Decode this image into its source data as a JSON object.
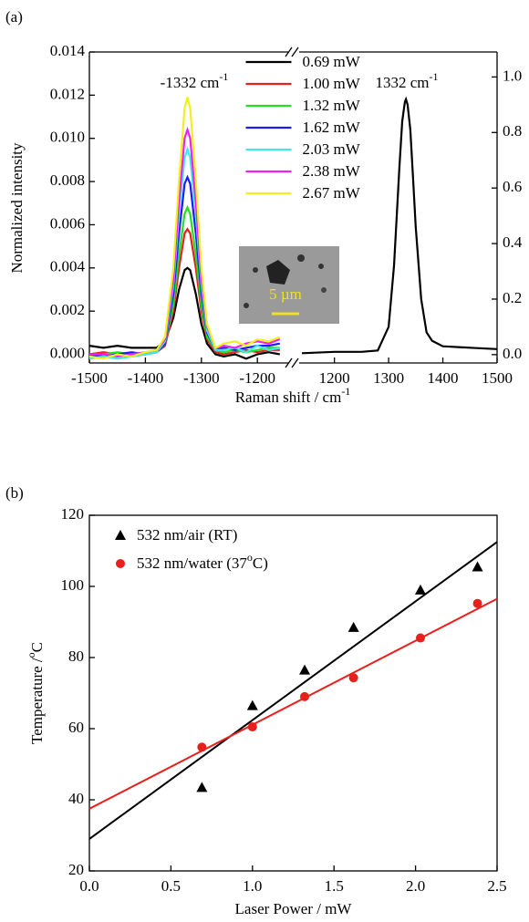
{
  "chart_data": [
    {
      "type": "broken-line",
      "panel_label": "(a)",
      "x_label": {
        "text": "Raman shift / cm",
        "sup": "-1"
      },
      "y_label": "Normalized intensity",
      "legend": "upper center",
      "ylim": [
        -0.0004,
        0.014
      ],
      "yticks": [
        {
          "value": 0,
          "label": "0.000"
        },
        {
          "value": 0.002,
          "label": "0.002"
        },
        {
          "value": 0.004,
          "label": "0.004"
        },
        {
          "value": 0.006,
          "label": "0.006"
        },
        {
          "value": 0.008,
          "label": "0.008"
        },
        {
          "value": 0.01,
          "label": "0.010"
        },
        {
          "value": 0.012,
          "label": "0.012"
        },
        {
          "value": 0.014,
          "label": "0.014"
        }
      ],
      "y2lim": [
        -0.03,
        1.09
      ],
      "y2ticks": [
        {
          "value": 0,
          "label": "0.0"
        },
        {
          "value": 0.2,
          "label": "0.2"
        },
        {
          "value": 0.4,
          "label": "0.4"
        },
        {
          "value": 0.6,
          "label": "0.6"
        },
        {
          "value": 0.8,
          "label": "0.8"
        },
        {
          "value": 1,
          "label": "1.0"
        }
      ],
      "annotations": [
        {
          "text": "-1332 cm",
          "sup": "-1"
        },
        {
          "text": "1332 cm",
          "sup": "-1"
        }
      ],
      "inset_scale_label": "5 µm",
      "left": {
        "xlim": [
          -1500,
          -1145
        ],
        "xticks": [
          -1500,
          -1400,
          -1300,
          -1200
        ],
        "x": [
          -1500,
          -1475,
          -1450,
          -1425,
          -1400,
          -1380,
          -1365,
          -1350,
          -1340,
          -1330,
          -1325,
          -1320,
          -1310,
          -1300,
          -1290,
          -1275,
          -1260,
          -1240,
          -1220,
          -1200,
          -1180,
          -1160
        ],
        "series": [
          {
            "name": "0.69 mW",
            "color": "#000000",
            "values": [
              0.0004,
              0.0003,
              0.0004,
              0.0003,
              0.0003,
              0.0003,
              0.0006,
              0.0017,
              0.003,
              0.0039,
              0.004,
              0.0039,
              0.0028,
              0.0014,
              0.0005,
              0.0,
              -0.0001,
              0.0,
              -0.0002,
              0.0,
              0.0001,
              0.0
            ]
          },
          {
            "name": "1.00 mW",
            "color": "#e8201c",
            "values": [
              0.0,
              0.0001,
              0.0,
              -0.0001,
              0.0,
              0.0001,
              0.0004,
              0.002,
              0.004,
              0.0056,
              0.0058,
              0.0056,
              0.004,
              0.002,
              0.0007,
              0.0001,
              0.0,
              0.0001,
              0.0002,
              0.0001,
              0.0002,
              0.0002
            ]
          },
          {
            "name": "1.32 mW",
            "color": "#22e022",
            "values": [
              -0.0001,
              0.0,
              0.0001,
              0.0,
              0.0,
              0.0001,
              0.0005,
              0.0023,
              0.0046,
              0.0065,
              0.0068,
              0.0065,
              0.0046,
              0.0023,
              0.0008,
              0.0002,
              0.0001,
              0.0002,
              0.0001,
              0.0002,
              0.0003,
              0.0003
            ]
          },
          {
            "name": "1.62 mW",
            "color": "#1c1cf0",
            "values": [
              0.0,
              -0.0001,
              0.0,
              0.0001,
              0.0,
              0.0001,
              0.0005,
              0.0028,
              0.0056,
              0.0079,
              0.0082,
              0.0079,
              0.0056,
              0.0028,
              0.001,
              0.0002,
              0.0003,
              0.0002,
              0.0003,
              0.0004,
              0.0004,
              0.0005
            ]
          },
          {
            "name": "2.03 mW",
            "color": "#40e8e8",
            "values": [
              -0.0002,
              -0.0001,
              -0.0002,
              -0.0001,
              0.0,
              0.0001,
              0.0006,
              0.0032,
              0.0065,
              0.0091,
              0.0095,
              0.0091,
              0.0065,
              0.0032,
              0.0011,
              0.0002,
              0.0002,
              0.0003,
              0.0001,
              0.0004,
              0.0002,
              0.0003
            ]
          },
          {
            "name": "2.38 mW",
            "color": "#f020f0",
            "values": [
              0.0,
              0.0,
              -0.0001,
              0.0,
              0.0001,
              0.0002,
              0.0007,
              0.0035,
              0.0071,
              0.01,
              0.0104,
              0.01,
              0.0071,
              0.0035,
              0.0013,
              0.0003,
              0.0004,
              0.0003,
              0.0005,
              0.0006,
              0.0005,
              0.0007
            ]
          },
          {
            "name": "2.67 mW",
            "color": "#f0f020",
            "values": [
              -0.0001,
              -0.0002,
              0.0,
              -0.0001,
              0.0001,
              0.0002,
              0.0008,
              0.004,
              0.0081,
              0.0114,
              0.0119,
              0.0114,
              0.0081,
              0.004,
              0.0014,
              0.0003,
              0.0005,
              0.0006,
              0.0004,
              0.0007,
              0.0006,
              0.0008
            ]
          }
        ]
      },
      "right": {
        "xlim": [
          1135,
          1500
        ],
        "xticks": [
          1200,
          1300,
          1400,
          1500
        ],
        "x": [
          1140,
          1200,
          1250,
          1280,
          1300,
          1310,
          1320,
          1325,
          1330,
          1332,
          1335,
          1340,
          1345,
          1350,
          1360,
          1370,
          1380,
          1400,
          1450,
          1500
        ],
        "series": [
          {
            "color": "#000000",
            "axis": "y2",
            "values": [
              0.005,
              0.01,
              0.01,
              0.015,
              0.1,
              0.32,
              0.68,
              0.84,
              0.91,
              0.92,
              0.9,
              0.81,
              0.64,
              0.46,
              0.2,
              0.08,
              0.05,
              0.03,
              0.025,
              0.02
            ]
          }
        ]
      }
    },
    {
      "type": "scatter",
      "panel_label": "(b)",
      "x_label": "Laser Power / mW",
      "y_label": {
        "text": "Temperature /",
        "sup": "o",
        "after": "C"
      },
      "legend": "upper left",
      "xlim": [
        0,
        2.5
      ],
      "xticks": [
        {
          "value": 0,
          "label": "0.0"
        },
        {
          "value": 0.5,
          "label": "0.5"
        },
        {
          "value": 1,
          "label": "1.0"
        },
        {
          "value": 1.5,
          "label": "1.5"
        },
        {
          "value": 2,
          "label": "2.0"
        },
        {
          "value": 2.5,
          "label": "2.5"
        }
      ],
      "ylim": [
        20,
        120
      ],
      "yticks": [
        20,
        40,
        60,
        80,
        100,
        120
      ],
      "series": [
        {
          "name": {
            "text": "532 nm/air (RT)"
          },
          "color": "#000000",
          "marker": "triangle",
          "x": [
            0.69,
            1.0,
            1.32,
            1.62,
            2.03,
            2.38
          ],
          "values": [
            43.5,
            66.5,
            76.5,
            88.5,
            99,
            105.5
          ]
        },
        {
          "name": {
            "text": "532 nm/water (37",
            "sup": "o",
            "after": "C)"
          },
          "color": "#e8201c",
          "marker": "circle",
          "x": [
            0.69,
            1.0,
            1.32,
            1.62,
            2.03,
            2.38
          ],
          "values": [
            54.8,
            60.5,
            69,
            74.3,
            85.5,
            95.2
          ]
        }
      ],
      "fits": [
        {
          "color": "#000000",
          "x": [
            0,
            2.5
          ],
          "values": [
            29,
            112.5
          ]
        },
        {
          "color": "#e8201c",
          "x": [
            0,
            2.5
          ],
          "values": [
            37.5,
            96.5
          ]
        }
      ]
    }
  ]
}
